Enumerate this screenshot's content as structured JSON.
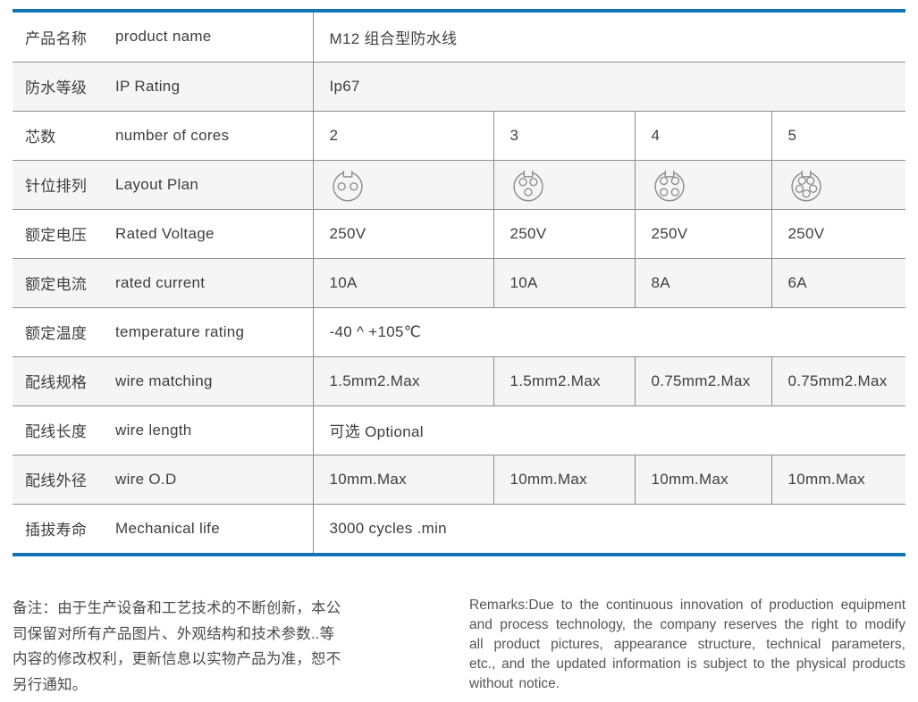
{
  "accent_color": "#1273b6",
  "border_color": "#8c8c8c",
  "stripe_color": "#f5f5f5",
  "table": {
    "rows": [
      {
        "zh": "产品名称",
        "en": "product name",
        "value": "M12 组合型防水线"
      },
      {
        "zh": "防水等级",
        "en": "IP Rating",
        "value": "Ip67"
      },
      {
        "zh": "芯数",
        "en": "number of cores",
        "values": [
          "2",
          "3",
          "4",
          "5"
        ]
      },
      {
        "zh": "针位排列",
        "en": "Layout Plan",
        "icons": [
          "connector-2pin-icon",
          "connector-3pin-icon",
          "connector-4pin-icon",
          "connector-5pin-icon"
        ],
        "pins": [
          "2",
          "3",
          "4",
          "5"
        ]
      },
      {
        "zh": "额定电压",
        "en": "Rated Voltage",
        "values": [
          "250V",
          "250V",
          "250V",
          "250V"
        ]
      },
      {
        "zh": "额定电流",
        "en": "rated current",
        "values": [
          "10A",
          "10A",
          "8A",
          "6A"
        ]
      },
      {
        "zh": "额定温度",
        "en": "temperature rating",
        "value": "-40 ^ +105℃"
      },
      {
        "zh": "配线规格",
        "en": "wire matching",
        "values": [
          "1.5mm2.Max",
          "1.5mm2.Max",
          "0.75mm2.Max",
          "0.75mm2.Max"
        ]
      },
      {
        "zh": "配线长度",
        "en": "wire length",
        "value": "可选  Optional"
      },
      {
        "zh": "配线外径",
        "en": "wire O.D",
        "values": [
          "10mm.Max",
          "10mm.Max",
          "10mm.Max",
          "10mm.Max"
        ]
      },
      {
        "zh": "插拔寿命",
        "en": "Mechanical life",
        "value": "3000 cycles .min"
      }
    ]
  },
  "remarks": {
    "zh": "备注：由于生产设备和工艺技术的不断创新，本公司保留对所有产品图片、外观结构和技术参数..等内容的修改权利，更新信息以实物产品为准，恕不另行通知。",
    "en": "Remarks:Due to the continuous innovation of production equipment and process technology, the company reserves the right to modify all product pictures, appearance structure, technical parameters, etc., and the updated information is subject to the physical products without notice."
  }
}
